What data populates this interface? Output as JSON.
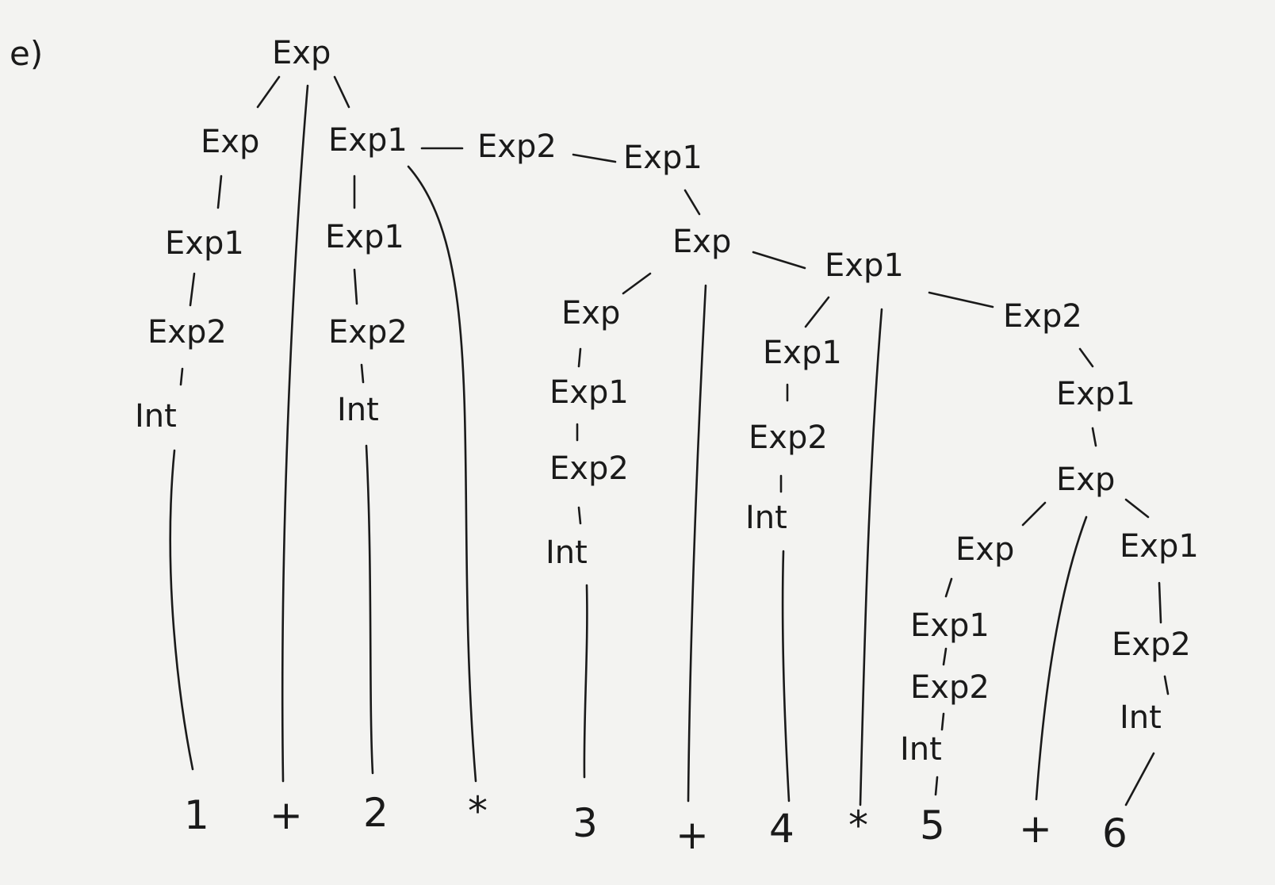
{
  "part_label": "e)",
  "tokens": [
    "1",
    "+",
    "2",
    "*",
    "3",
    "+",
    "4",
    "*",
    "5",
    "+",
    "6"
  ],
  "nodes": {
    "root": "Exp",
    "l_exp": "Exp",
    "l_exp1": "Exp1",
    "l_exp2": "Exp2",
    "l_int": "Int",
    "m_exp1": "Exp1",
    "m_exp1b": "Exp1",
    "m_exp2": "Exp2",
    "m_int": "Int",
    "c_exp2": "Exp2",
    "c_exp1": "Exp1",
    "c_exp": "Exp",
    "c3_exp": "Exp",
    "c3_exp1": "Exp1",
    "c3_exp2": "Exp2",
    "c3_int": "Int",
    "r_exp1": "Exp1",
    "r4_exp1": "Exp1",
    "r4_exp2": "Exp2",
    "r4_int": "Int",
    "r_exp2": "Exp2",
    "r_exp1b": "Exp1",
    "r_exp": "Exp",
    "r5_exp": "Exp",
    "r5_exp1": "Exp1",
    "r5_exp2": "Exp2",
    "r5_int": "Int",
    "r6_exp1": "Exp1",
    "r6_exp2": "Exp2",
    "r6_int": "Int"
  }
}
